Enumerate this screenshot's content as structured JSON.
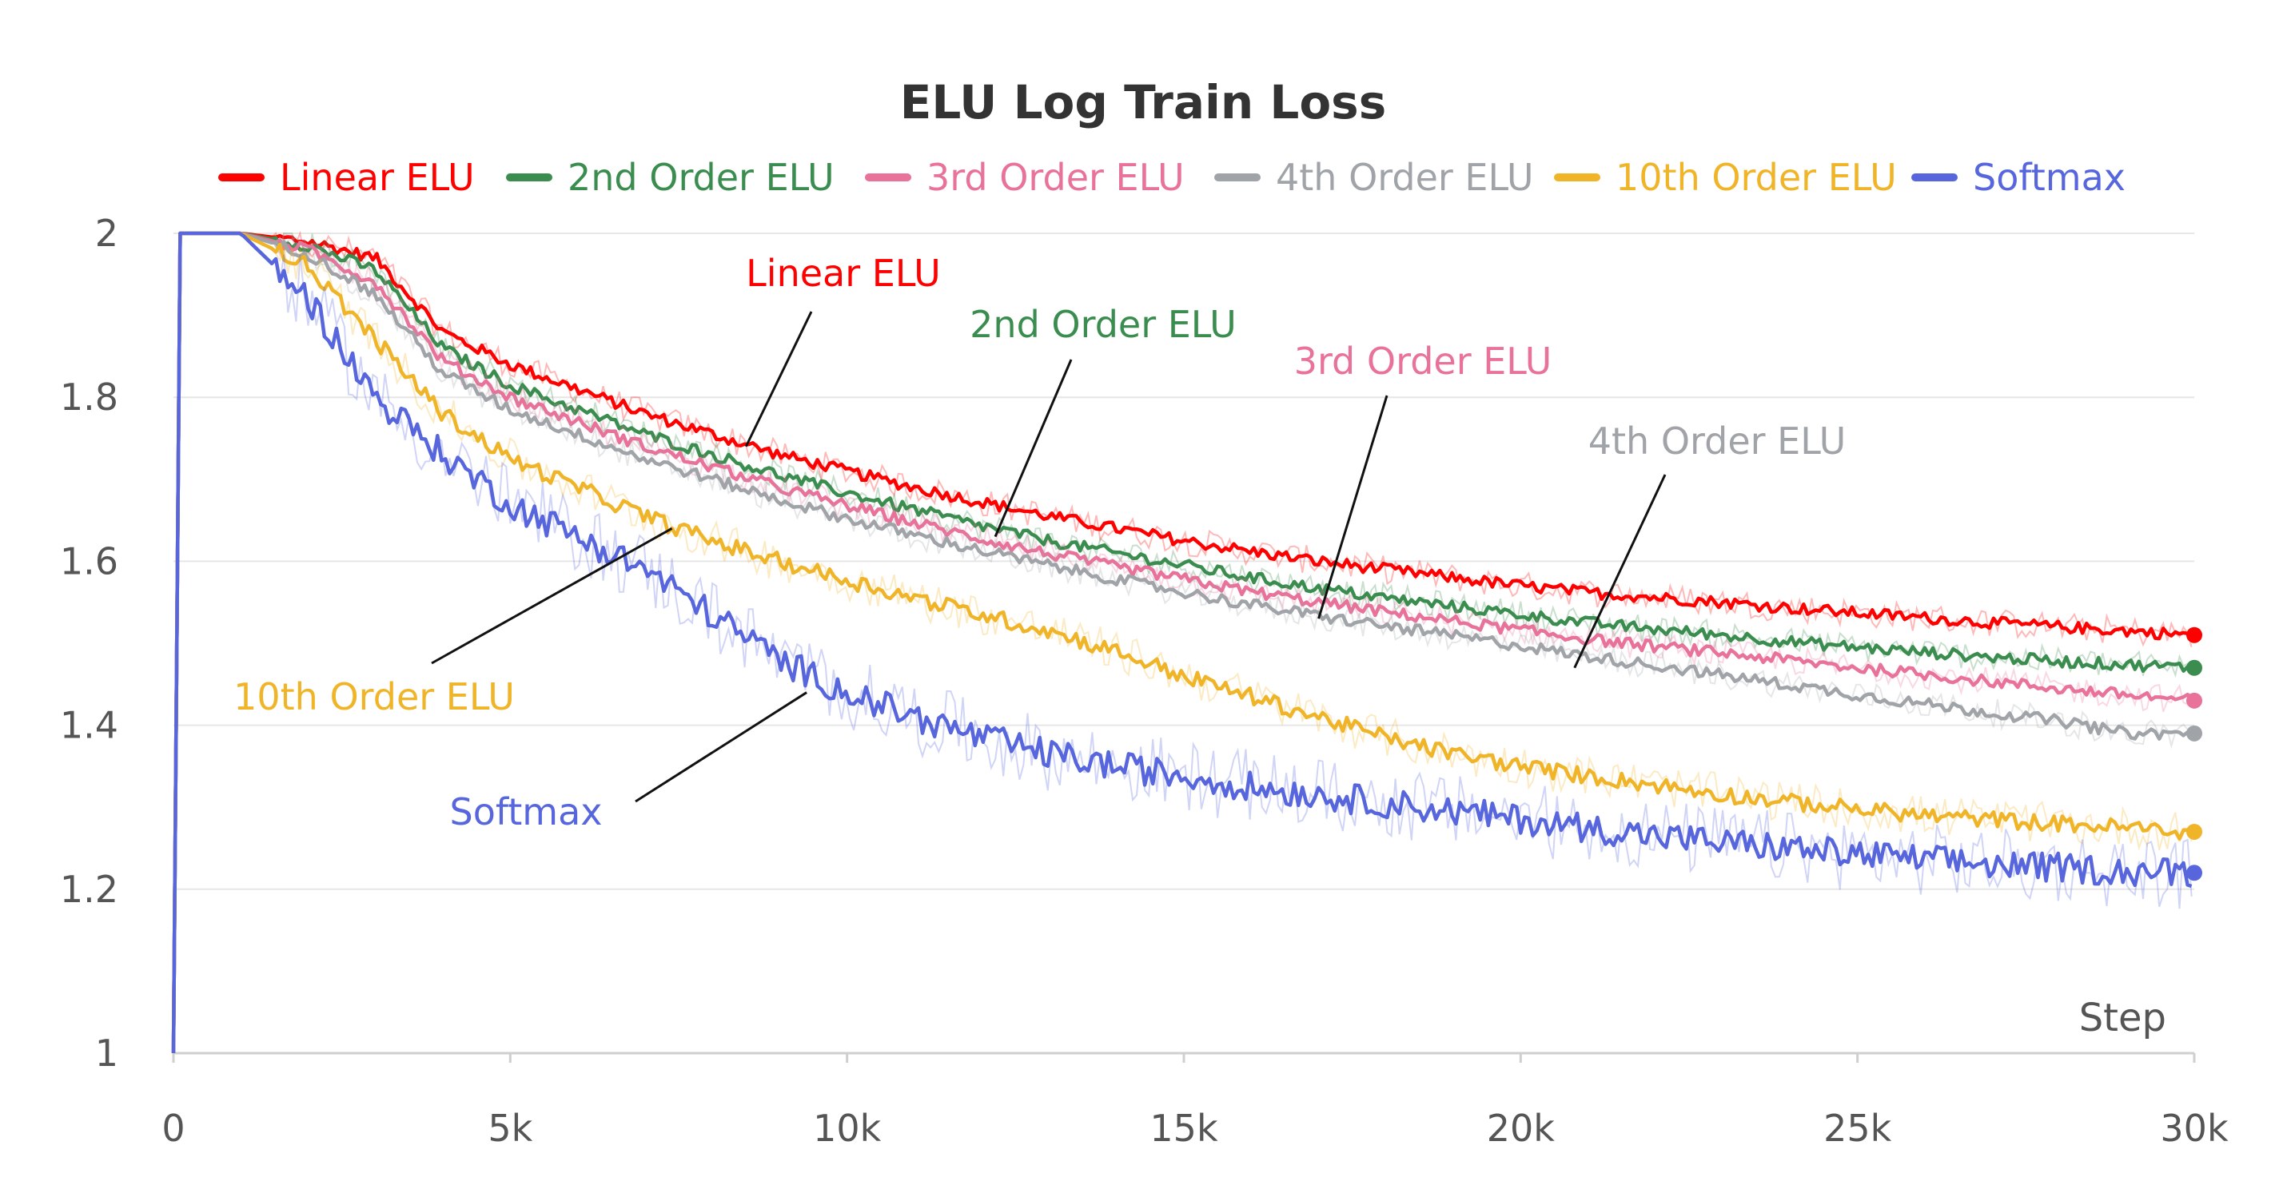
{
  "chart_data": {
    "type": "line",
    "title": "ELU Log Train Loss",
    "xlabel": "Step",
    "ylabel": "",
    "xlim": [
      0,
      30000
    ],
    "ylim": [
      1,
      2
    ],
    "x_ticks": [
      0,
      5000,
      10000,
      15000,
      20000,
      25000,
      30000
    ],
    "x_tick_labels": [
      "0",
      "5k",
      "10k",
      "15k",
      "20k",
      "25k",
      "30k"
    ],
    "y_ticks": [
      1,
      1.2,
      1.4,
      1.6,
      1.8,
      2
    ],
    "y_tick_labels": [
      "1",
      "1.2",
      "1.4",
      "1.6",
      "1.8",
      "2"
    ],
    "grid": true,
    "legend_position": "top",
    "x": [
      0,
      100,
      1000,
      2000,
      3000,
      4000,
      5000,
      6000,
      7000,
      8000,
      9000,
      10000,
      11000,
      12000,
      13000,
      14000,
      15000,
      16000,
      17000,
      18000,
      19000,
      20000,
      21000,
      22000,
      23000,
      24000,
      25000,
      26000,
      27000,
      28000,
      29000,
      30000
    ],
    "series": [
      {
        "name": "Linear ELU",
        "color": "#ff0000",
        "values": [
          1.0,
          2.0,
          2.0,
          1.99,
          1.97,
          1.88,
          1.84,
          1.81,
          1.78,
          1.755,
          1.73,
          1.71,
          1.69,
          1.672,
          1.655,
          1.64,
          1.625,
          1.612,
          1.6,
          1.59,
          1.58,
          1.57,
          1.562,
          1.556,
          1.55,
          1.543,
          1.537,
          1.531,
          1.525,
          1.52,
          1.515,
          1.51
        ]
      },
      {
        "name": "2nd Order ELU",
        "color": "#3a8d4f",
        "values": [
          1.0,
          2.0,
          2.0,
          1.985,
          1.955,
          1.86,
          1.815,
          1.785,
          1.755,
          1.73,
          1.705,
          1.683,
          1.663,
          1.643,
          1.625,
          1.61,
          1.595,
          1.58,
          1.567,
          1.555,
          1.545,
          1.535,
          1.525,
          1.517,
          1.51,
          1.502,
          1.495,
          1.489,
          1.483,
          1.478,
          1.474,
          1.47
        ]
      },
      {
        "name": "3rd Order ELU",
        "color": "#e8729a",
        "values": [
          1.0,
          2.0,
          2.0,
          1.98,
          1.94,
          1.845,
          1.8,
          1.77,
          1.74,
          1.715,
          1.69,
          1.668,
          1.647,
          1.627,
          1.609,
          1.593,
          1.578,
          1.563,
          1.55,
          1.538,
          1.527,
          1.516,
          1.505,
          1.496,
          1.488,
          1.479,
          1.47,
          1.462,
          1.453,
          1.445,
          1.437,
          1.43
        ]
      },
      {
        "name": "4th Order ELU",
        "color": "#a0a4a8",
        "values": [
          1.0,
          2.0,
          2.0,
          1.975,
          1.925,
          1.83,
          1.785,
          1.755,
          1.725,
          1.7,
          1.675,
          1.652,
          1.632,
          1.613,
          1.595,
          1.578,
          1.562,
          1.547,
          1.533,
          1.521,
          1.509,
          1.497,
          1.484,
          1.473,
          1.461,
          1.449,
          1.437,
          1.426,
          1.415,
          1.405,
          1.39,
          1.39
        ]
      },
      {
        "name": "10th Order ELU",
        "color": "#f0b429",
        "values": [
          1.0,
          2.0,
          2.0,
          1.96,
          1.87,
          1.78,
          1.725,
          1.69,
          1.655,
          1.625,
          1.6,
          1.577,
          1.555,
          1.535,
          1.515,
          1.49,
          1.46,
          1.435,
          1.41,
          1.385,
          1.365,
          1.35,
          1.338,
          1.327,
          1.316,
          1.306,
          1.298,
          1.29,
          1.285,
          1.28,
          1.275,
          1.27
        ]
      },
      {
        "name": "Softmax",
        "color": "#5766dd",
        "values": [
          1.0,
          2.0,
          2.0,
          1.92,
          1.8,
          1.73,
          1.67,
          1.63,
          1.59,
          1.535,
          1.48,
          1.44,
          1.41,
          1.385,
          1.365,
          1.35,
          1.338,
          1.325,
          1.315,
          1.305,
          1.295,
          1.285,
          1.275,
          1.265,
          1.257,
          1.25,
          1.242,
          1.236,
          1.23,
          1.226,
          1.222,
          1.22
        ]
      }
    ],
    "annotations": [
      {
        "text": "Linear ELU",
        "series": "Linear ELU",
        "x": 8500,
        "y": 1.74
      },
      {
        "text": "2nd Order ELU",
        "series": "2nd Order ELU",
        "x": 12200,
        "y": 1.63
      },
      {
        "text": "3rd Order ELU",
        "series": "3rd Order ELU",
        "x": 17000,
        "y": 1.53
      },
      {
        "text": "4th Order ELU",
        "series": "4th Order ELU",
        "x": 20800,
        "y": 1.47
      },
      {
        "text": "10th Order ELU",
        "series": "10th Order ELU",
        "x": 7400,
        "y": 1.64
      },
      {
        "text": "Softmax",
        "series": "Softmax",
        "x": 9400,
        "y": 1.44
      }
    ]
  }
}
